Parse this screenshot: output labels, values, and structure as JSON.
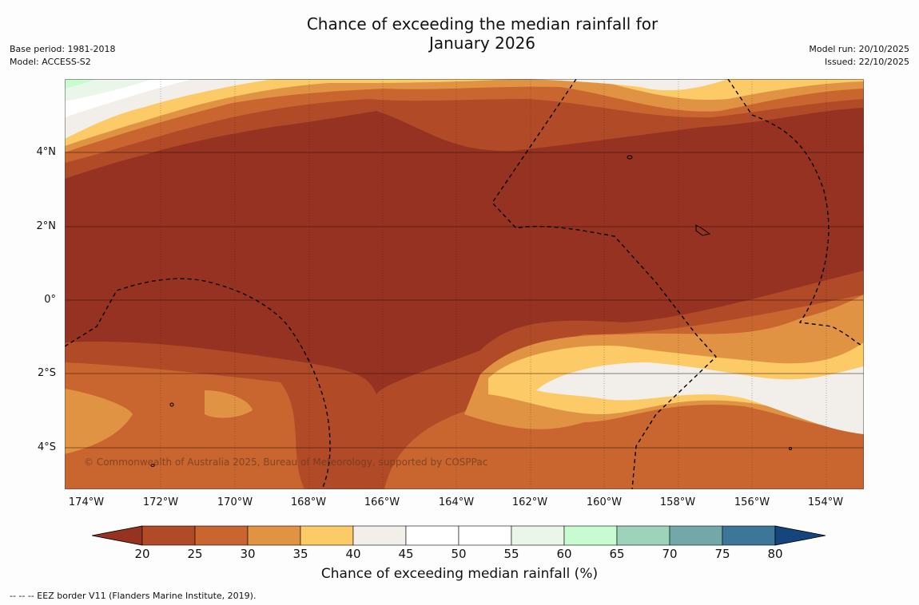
{
  "title_line1": "Chance of exceeding the median rainfall for",
  "title_line2": "January 2026",
  "base_period": "Base period: 1981-2018",
  "model": "Model: ACCESS-S2",
  "model_run": "Model run: 20/10/2025",
  "issued": "Issued: 22/10/2025",
  "latitude_labels": [
    "4°N",
    "2°N",
    "0°",
    "2°S",
    "4°S"
  ],
  "longitude_labels": [
    "174°W",
    "172°W",
    "170°W",
    "168°W",
    "166°W",
    "164°W",
    "162°W",
    "160°W",
    "158°W",
    "156°W",
    "154°W"
  ],
  "copyright": "© Commonwealth of Australia 2025, Bureau of Meteorology, supported by COSPPac",
  "colorbar": {
    "label": "Chance of exceeding median rainfall (%)",
    "ticks": [
      "20",
      "25",
      "30",
      "35",
      "40",
      "45",
      "50",
      "55",
      "60",
      "65",
      "70",
      "75",
      "80"
    ],
    "colors": [
      "#963222",
      "#b04a27",
      "#c9652f",
      "#e09443",
      "#fdca68",
      "#f2efea",
      "#ffffff",
      "#ffffff",
      "#eaf6ea",
      "#c8fcd0",
      "#9dd2bb",
      "#72a8a7",
      "#3c7799",
      "#14457c"
    ]
  },
  "legend_note": "--  --  -- EEZ border V11 (Flanders Marine Institute, 2019)."
}
